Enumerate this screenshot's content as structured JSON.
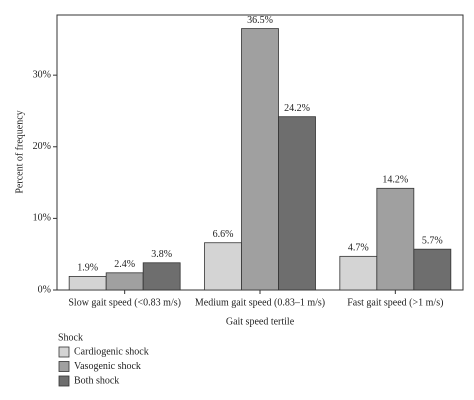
{
  "chart_data": {
    "type": "bar",
    "categories": [
      "Slow gait speed (<0.83 m/s)",
      "Medium gait speed (0.83–1 m/s)",
      "Fast gait speed (>1 m/s)"
    ],
    "series": [
      {
        "name": "Cardiogenic shock",
        "color": "#d4d4d4",
        "values": [
          1.9,
          6.6,
          4.7
        ],
        "value_labels": [
          "1.9%",
          "6.6%",
          "4.7%"
        ]
      },
      {
        "name": "Vasogenic shock",
        "color": "#a0a0a0",
        "values": [
          2.4,
          36.5,
          14.2
        ],
        "value_labels": [
          "2.4%",
          "36.5%",
          "14.2%"
        ]
      },
      {
        "name": "Both shock",
        "color": "#6e6e6e",
        "values": [
          3.8,
          24.2,
          5.7
        ],
        "value_labels": [
          "3.8%",
          "24.2%",
          "5.7%"
        ]
      }
    ],
    "x_label": "Gait speed tertile",
    "y_label": "Percent of frequency",
    "legend_title": "Shock",
    "legend_position": "bottom-left",
    "ylim": [
      0,
      38.4
    ],
    "yticks": [
      {
        "value": 0,
        "label": "0%"
      },
      {
        "value": 10,
        "label": "10%"
      },
      {
        "value": 20,
        "label": "20%"
      },
      {
        "value": 30,
        "label": "30%"
      }
    ],
    "grid": false
  }
}
